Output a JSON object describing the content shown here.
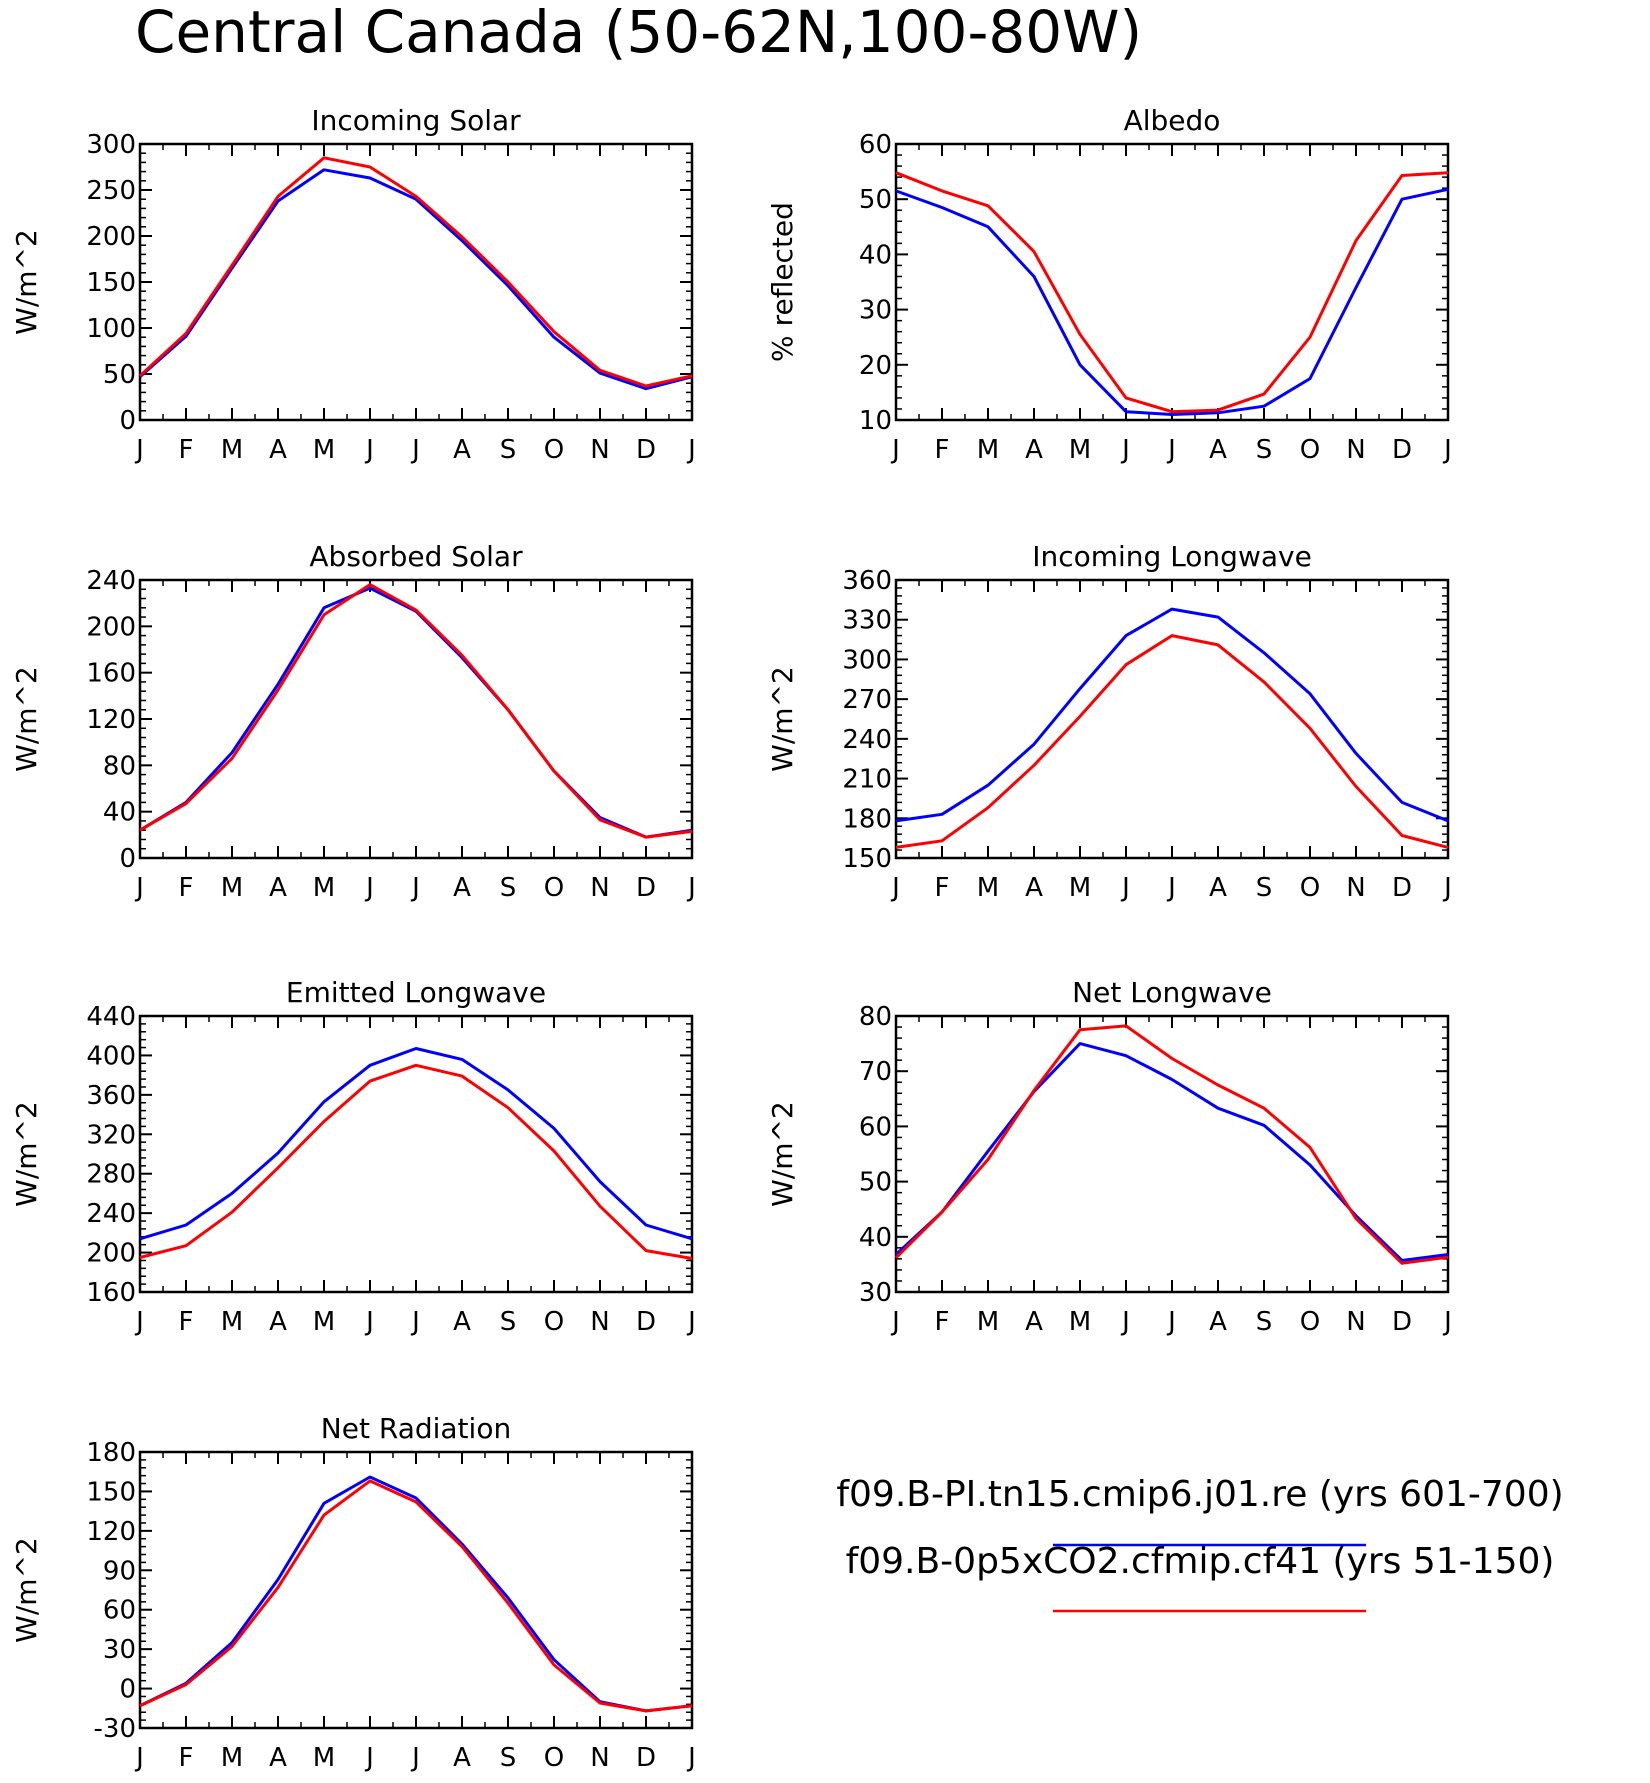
{
  "title": "Central Canada (50-62N,100-80W)",
  "colors": {
    "series_0": "#0000ff",
    "series_1": "#ff0000",
    "axis": "#000000"
  },
  "legend": [
    {
      "label": "f09.B-PI.tn15.cmip6.j01.re (yrs 601-700)",
      "color": "#0000ff"
    },
    {
      "label": "f09.B-0p5xCO2.cfmip.cf41 (yrs 51-150)",
      "color": "#ff0000"
    }
  ],
  "chart_data": [
    {
      "type": "line",
      "title": "Incoming Solar",
      "ylabel": "W/m^2",
      "ylim": [
        0,
        300
      ],
      "yticks": [
        0,
        50,
        100,
        150,
        200,
        250,
        300
      ],
      "categories": [
        "J",
        "F",
        "M",
        "A",
        "M",
        "J",
        "J",
        "A",
        "S",
        "O",
        "N",
        "D",
        "J"
      ],
      "series": [
        {
          "values": [
            47,
            91,
            165,
            238,
            272,
            263,
            240,
            195,
            146,
            90,
            51,
            34,
            47
          ]
        },
        {
          "values": [
            48,
            94,
            168,
            243,
            285,
            275,
            243,
            199,
            150,
            96,
            54,
            37,
            48
          ]
        }
      ]
    },
    {
      "type": "line",
      "title": "Albedo",
      "ylabel": "% reflected",
      "ylim": [
        10,
        60
      ],
      "yticks": [
        10,
        20,
        30,
        40,
        50,
        60
      ],
      "categories": [
        "J",
        "F",
        "M",
        "A",
        "M",
        "J",
        "J",
        "A",
        "S",
        "O",
        "N",
        "D",
        "J"
      ],
      "series": [
        {
          "values": [
            51.5,
            48.5,
            45,
            36,
            20,
            11.5,
            11,
            11.3,
            12.5,
            17.5,
            34,
            50,
            51.8
          ]
        },
        {
          "values": [
            54.8,
            51.5,
            48.8,
            40.5,
            25.5,
            14,
            11.5,
            11.8,
            14.7,
            25,
            42.5,
            54.3,
            54.8
          ]
        }
      ]
    },
    {
      "type": "line",
      "title": "Absorbed Solar",
      "ylabel": "W/m^2",
      "ylim": [
        0,
        240
      ],
      "yticks": [
        0,
        40,
        80,
        120,
        160,
        200,
        240
      ],
      "categories": [
        "J",
        "F",
        "M",
        "A",
        "M",
        "J",
        "J",
        "A",
        "S",
        "O",
        "N",
        "D",
        "J"
      ],
      "series": [
        {
          "values": [
            24,
            48,
            91,
            150,
            216,
            233,
            213,
            173,
            128,
            75,
            35,
            18,
            24
          ]
        },
        {
          "values": [
            24,
            47,
            86,
            145,
            210,
            236,
            214,
            175,
            128,
            75,
            33,
            18,
            23
          ]
        }
      ]
    },
    {
      "type": "line",
      "title": "Incoming Longwave",
      "ylabel": "W/m^2",
      "ylim": [
        150,
        360
      ],
      "yticks": [
        150,
        180,
        210,
        240,
        270,
        300,
        330,
        360
      ],
      "categories": [
        "J",
        "F",
        "M",
        "A",
        "M",
        "J",
        "J",
        "A",
        "S",
        "O",
        "N",
        "D",
        "J"
      ],
      "series": [
        {
          "values": [
            178,
            183,
            205,
            236,
            278,
            318,
            338,
            332,
            305,
            274,
            229,
            192,
            178
          ]
        },
        {
          "values": [
            158,
            163,
            188,
            220,
            257,
            296,
            318,
            311,
            283,
            248,
            204,
            167,
            158
          ]
        }
      ]
    },
    {
      "type": "line",
      "title": "Emitted Longwave",
      "ylabel": "W/m^2",
      "ylim": [
        160,
        440
      ],
      "yticks": [
        160,
        200,
        240,
        280,
        320,
        360,
        400,
        440
      ],
      "categories": [
        "J",
        "F",
        "M",
        "A",
        "M",
        "J",
        "J",
        "A",
        "S",
        "O",
        "N",
        "D",
        "J"
      ],
      "series": [
        {
          "values": [
            214,
            228,
            260,
            301,
            353,
            390,
            407,
            396,
            365,
            326,
            272,
            228,
            214
          ]
        },
        {
          "values": [
            195,
            207,
            241,
            286,
            333,
            374,
            390,
            379,
            347,
            303,
            247,
            202,
            194
          ]
        }
      ]
    },
    {
      "type": "line",
      "title": "Net Longwave",
      "ylabel": "W/m^2",
      "ylim": [
        30,
        80
      ],
      "yticks": [
        30,
        40,
        50,
        60,
        70,
        80
      ],
      "categories": [
        "J",
        "F",
        "M",
        "A",
        "M",
        "J",
        "J",
        "A",
        "S",
        "O",
        "N",
        "D",
        "J"
      ],
      "series": [
        {
          "values": [
            36.8,
            44.5,
            55.5,
            66.3,
            75,
            72.8,
            68.5,
            63.3,
            60.2,
            53,
            43.8,
            35.7,
            36.8
          ]
        },
        {
          "values": [
            36.2,
            44.5,
            54,
            66.5,
            77.5,
            78.2,
            72.3,
            67.5,
            63.3,
            56.2,
            43.3,
            35.2,
            36.3
          ]
        }
      ]
    },
    {
      "type": "line",
      "title": "Net Radiation",
      "ylabel": "W/m^2",
      "ylim": [
        -30,
        180
      ],
      "yticks": [
        -30,
        0,
        30,
        60,
        90,
        120,
        150,
        180
      ],
      "categories": [
        "J",
        "F",
        "M",
        "A",
        "M",
        "J",
        "J",
        "A",
        "S",
        "O",
        "N",
        "D",
        "J"
      ],
      "series": [
        {
          "values": [
            -13,
            4,
            35,
            83,
            141,
            161,
            145,
            110,
            69,
            22,
            -10,
            -17,
            -13
          ]
        },
        {
          "values": [
            -13,
            3,
            32,
            77,
            132,
            158,
            142,
            108,
            65,
            18,
            -11,
            -17,
            -13
          ]
        }
      ]
    }
  ]
}
